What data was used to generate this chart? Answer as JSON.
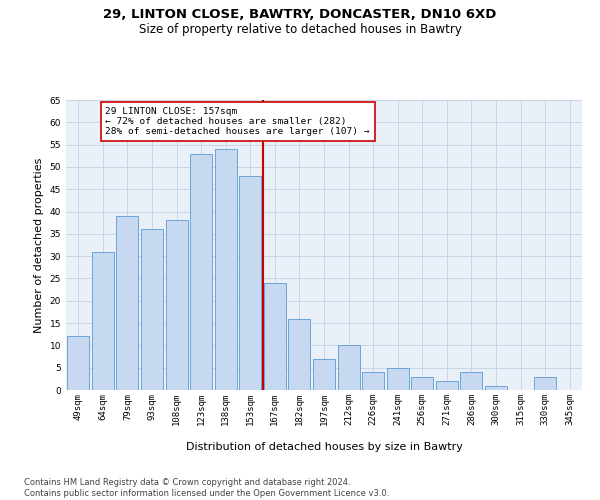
{
  "title1": "29, LINTON CLOSE, BAWTRY, DONCASTER, DN10 6XD",
  "title2": "Size of property relative to detached houses in Bawtry",
  "xlabel": "Distribution of detached houses by size in Bawtry",
  "ylabel": "Number of detached properties",
  "categories": [
    "49sqm",
    "64sqm",
    "79sqm",
    "93sqm",
    "108sqm",
    "123sqm",
    "138sqm",
    "153sqm",
    "167sqm",
    "182sqm",
    "197sqm",
    "212sqm",
    "226sqm",
    "241sqm",
    "256sqm",
    "271sqm",
    "286sqm",
    "300sqm",
    "315sqm",
    "330sqm",
    "345sqm"
  ],
  "values": [
    12,
    31,
    39,
    36,
    38,
    53,
    54,
    48,
    24,
    16,
    7,
    10,
    4,
    5,
    3,
    2,
    4,
    1,
    0,
    3,
    0
  ],
  "bar_color": "#c6d9f0",
  "bar_edge_color": "#5b9bd5",
  "vline_color": "#cc0000",
  "annotation_text": "29 LINTON CLOSE: 157sqm\n← 72% of detached houses are smaller (282)\n28% of semi-detached houses are larger (107) →",
  "annotation_box_color": "#cc0000",
  "ylim": [
    0,
    65
  ],
  "yticks": [
    0,
    5,
    10,
    15,
    20,
    25,
    30,
    35,
    40,
    45,
    50,
    55,
    60,
    65
  ],
  "grid_color": "#c8d4e8",
  "bg_color": "#eaf0f8",
  "footer": "Contains HM Land Registry data © Crown copyright and database right 2024.\nContains public sector information licensed under the Open Government Licence v3.0.",
  "title1_fontsize": 9.5,
  "title2_fontsize": 8.5,
  "axis_label_fontsize": 8,
  "tick_fontsize": 6.5,
  "footer_fontsize": 6,
  "ylabel_fontsize": 8
}
